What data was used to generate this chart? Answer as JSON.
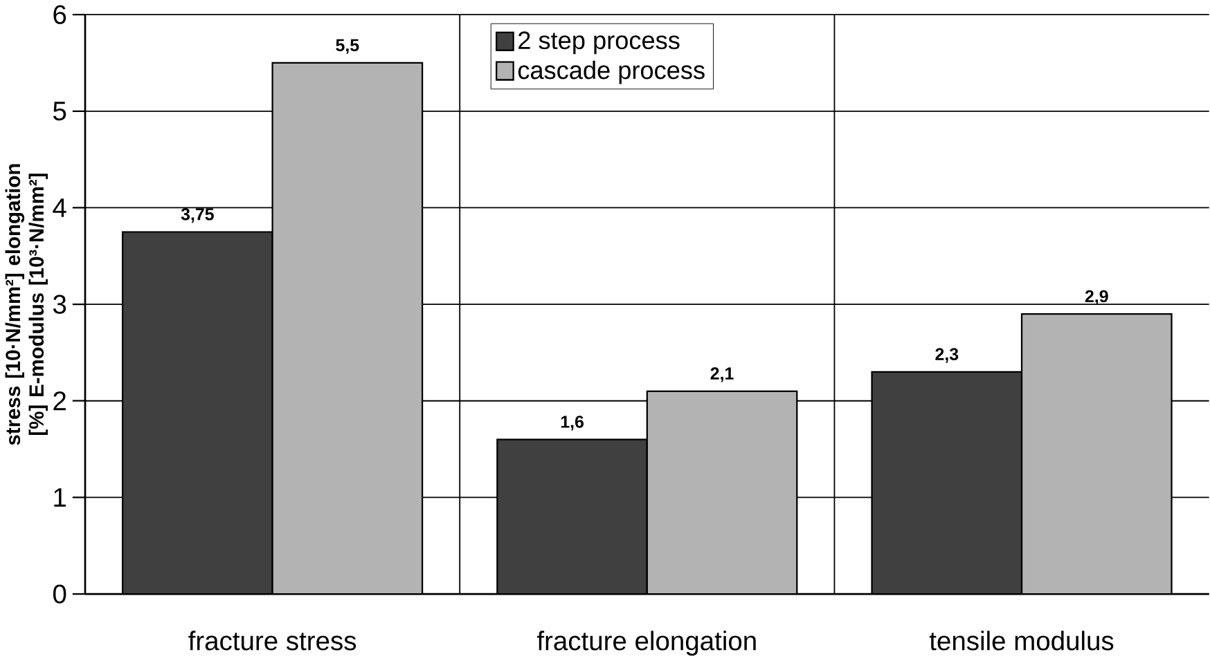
{
  "chart_data": {
    "type": "bar",
    "ylabel": "stress [10·N/mm²] elongation [%] E-modulus [10³·N/mm²]",
    "categories": [
      "fracture stress",
      "fracture elongation",
      "tensile modulus"
    ],
    "series": [
      {
        "name": "2 step process",
        "color": "#404040",
        "values": [
          3.75,
          1.6,
          2.3
        ],
        "value_labels": [
          "3,75",
          "1,6",
          "2,3"
        ]
      },
      {
        "name": "cascade process",
        "color": "#b3b3b3",
        "values": [
          5.5,
          2.1,
          2.9
        ],
        "value_labels": [
          "5,5",
          "2,1",
          "2,9"
        ]
      }
    ],
    "ylim": [
      0,
      6
    ],
    "yticks": [
      0,
      1,
      2,
      3,
      4,
      5,
      6
    ],
    "grid": true,
    "legend": "top"
  }
}
